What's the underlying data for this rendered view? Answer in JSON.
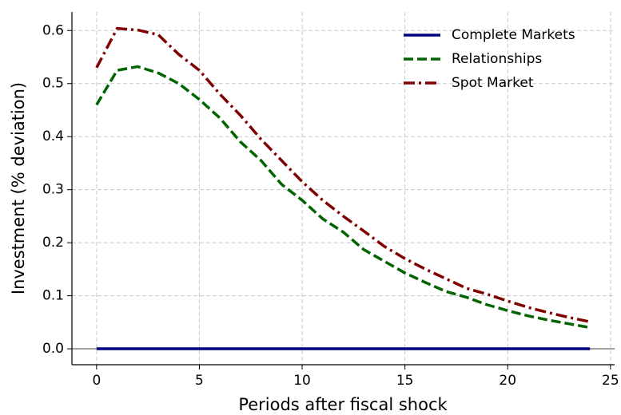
{
  "chart_data": {
    "type": "line",
    "xlabel": "Periods after fiscal shock",
    "ylabel": "Investment (% deviation)",
    "x": [
      0,
      1,
      2,
      3,
      4,
      5,
      6,
      7,
      8,
      9,
      10,
      11,
      12,
      13,
      14,
      15,
      16,
      17,
      18,
      19,
      20,
      21,
      22,
      23,
      24
    ],
    "series": [
      {
        "name": "Complete Markets",
        "color": "#000080",
        "dash": "solid",
        "values": [
          0,
          0,
          0,
          0,
          0,
          0,
          0,
          0,
          0,
          0,
          0,
          0,
          0,
          0,
          0,
          0,
          0,
          0,
          0,
          0,
          0,
          0,
          0,
          0,
          0
        ]
      },
      {
        "name": "Relationships",
        "color": "#006400",
        "dash": "dashed",
        "values": [
          0.46,
          0.525,
          0.532,
          0.52,
          0.5,
          0.47,
          0.435,
          0.39,
          0.355,
          0.31,
          0.28,
          0.245,
          0.22,
          0.187,
          0.165,
          0.143,
          0.125,
          0.108,
          0.097,
          0.083,
          0.072,
          0.062,
          0.054,
          0.047,
          0.04
        ]
      },
      {
        "name": "Spot Market",
        "color": "#800000",
        "dash": "dashdot",
        "values": [
          0.53,
          0.604,
          0.601,
          0.592,
          0.555,
          0.525,
          0.48,
          0.44,
          0.395,
          0.355,
          0.315,
          0.28,
          0.25,
          0.222,
          0.193,
          0.17,
          0.15,
          0.132,
          0.114,
          0.103,
          0.09,
          0.078,
          0.068,
          0.059,
          0.051
        ]
      }
    ],
    "xlim": [
      -1.2,
      25.2
    ],
    "ylim": [
      -0.03,
      0.635
    ],
    "xticks": [
      0,
      5,
      10,
      15,
      20,
      25
    ],
    "yticks": [
      {
        "value": 0,
        "label": "0.0"
      },
      0.1,
      0.2,
      0.3,
      0.4,
      0.5,
      0.6
    ],
    "grid": true,
    "legend": "upper right"
  }
}
